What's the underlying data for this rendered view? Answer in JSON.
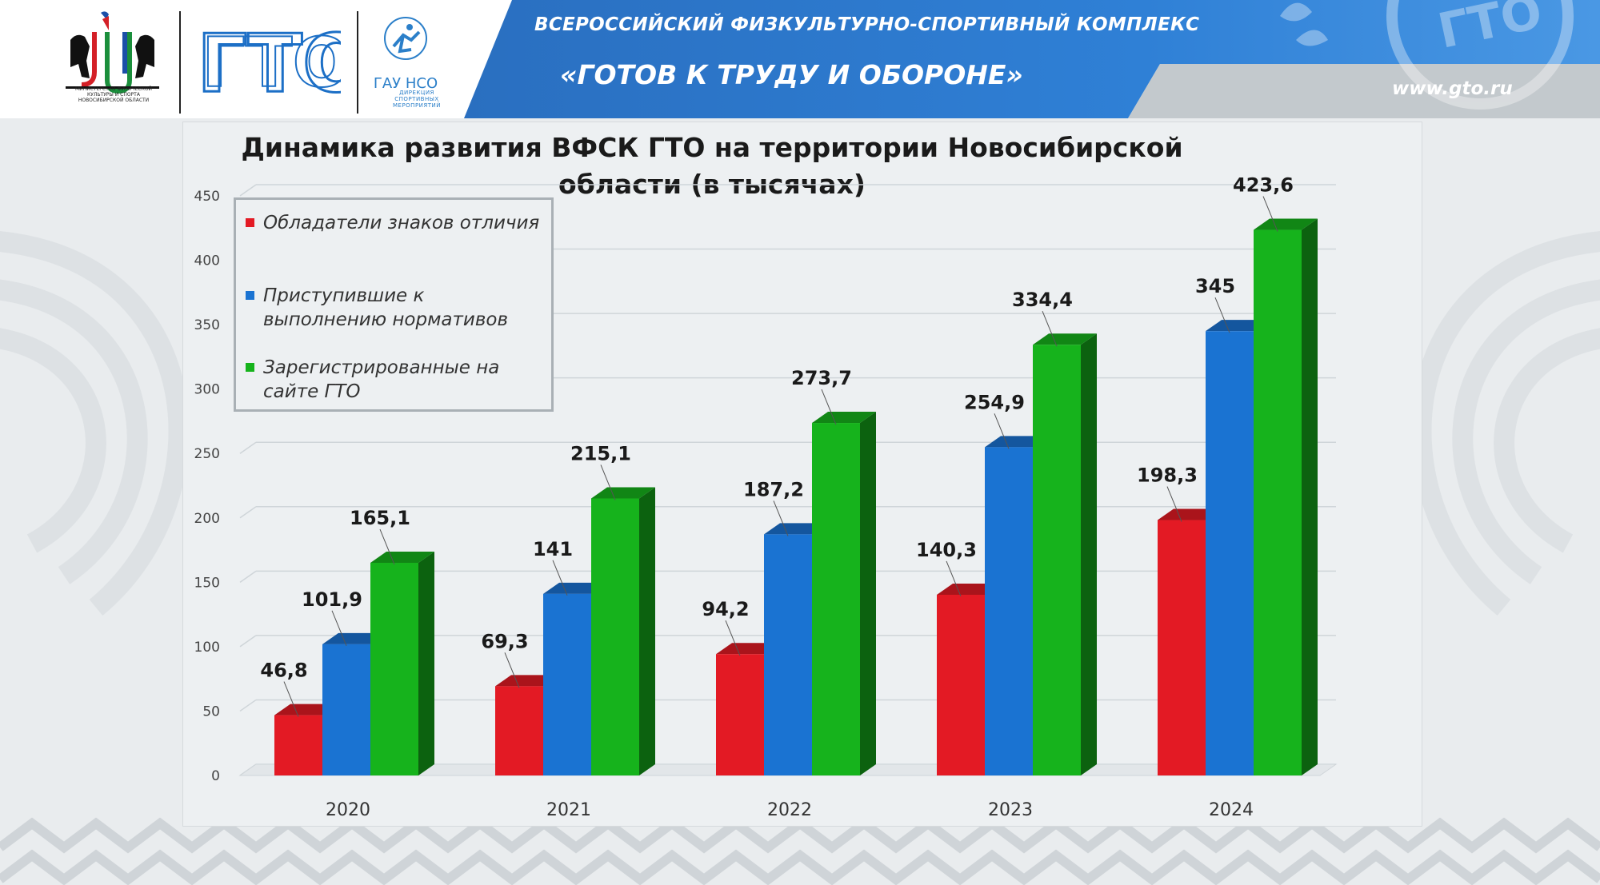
{
  "header": {
    "line1": "ВСЕРОССИЙСКИЙ ФИЗКУЛЬТУРНО-СПОРТИВНЫЙ КОМПЛЕКС",
    "line2": "«ГОТОВ К ТРУДУ И ОБОРОНЕ»",
    "url": "www.gto.ru",
    "ministry_caption": "МИНИСТЕРСТВО ФИЗИЧЕСКОЙ КУЛЬТУРЫ И СПОРТА НОВОСИБИРСКОЙ ОБЛАСТИ",
    "gto_logo_text": "ГТО",
    "gaunso_logo_text": "ГАУ НСО",
    "gaunso_caption": "ДИРЕКЦИЯ СПОРТИВНЫХ МЕРОПРИЯТИЙ",
    "band_watermark": "ГТО",
    "colors": {
      "band": "#1f6fc4",
      "band_light": "#3b8fe0",
      "accent_gray": "#c8ced2"
    }
  },
  "chart_data": {
    "type": "bar",
    "title": "Динамика развития ВФСК ГТО на территории Новосибирской области (в тысячах)",
    "categories": [
      "2020",
      "2021",
      "2022",
      "2023",
      "2024"
    ],
    "series": [
      {
        "name": "Обладатели знаков отличия",
        "color": "#e31a24",
        "values": [
          46.8,
          69.3,
          94.2,
          140.3,
          198.3
        ],
        "labels": [
          "46,8",
          "69,3",
          "94,2",
          "140,3",
          "198,3"
        ]
      },
      {
        "name": "Приступившие к выполнению нормативов",
        "color": "#1a73d2",
        "values": [
          101.9,
          141,
          187.2,
          254.9,
          345
        ],
        "labels": [
          "101,9",
          "141",
          "187,2",
          "254,9",
          "345"
        ]
      },
      {
        "name": "Зарегистрированные на сайте ГТО",
        "color": "#16b31c",
        "values": [
          165.1,
          215.1,
          273.7,
          334.4,
          423.6
        ],
        "labels": [
          "165,1",
          "215,1",
          "273,7",
          "334,4",
          "423,6"
        ]
      }
    ],
    "ylim": [
      0,
      450
    ],
    "yticks": [
      "0",
      "50",
      "100",
      "150",
      "200",
      "250",
      "300",
      "350",
      "400",
      "450"
    ],
    "grid": true,
    "legend_position": "top-left",
    "style": "3d-columns"
  }
}
